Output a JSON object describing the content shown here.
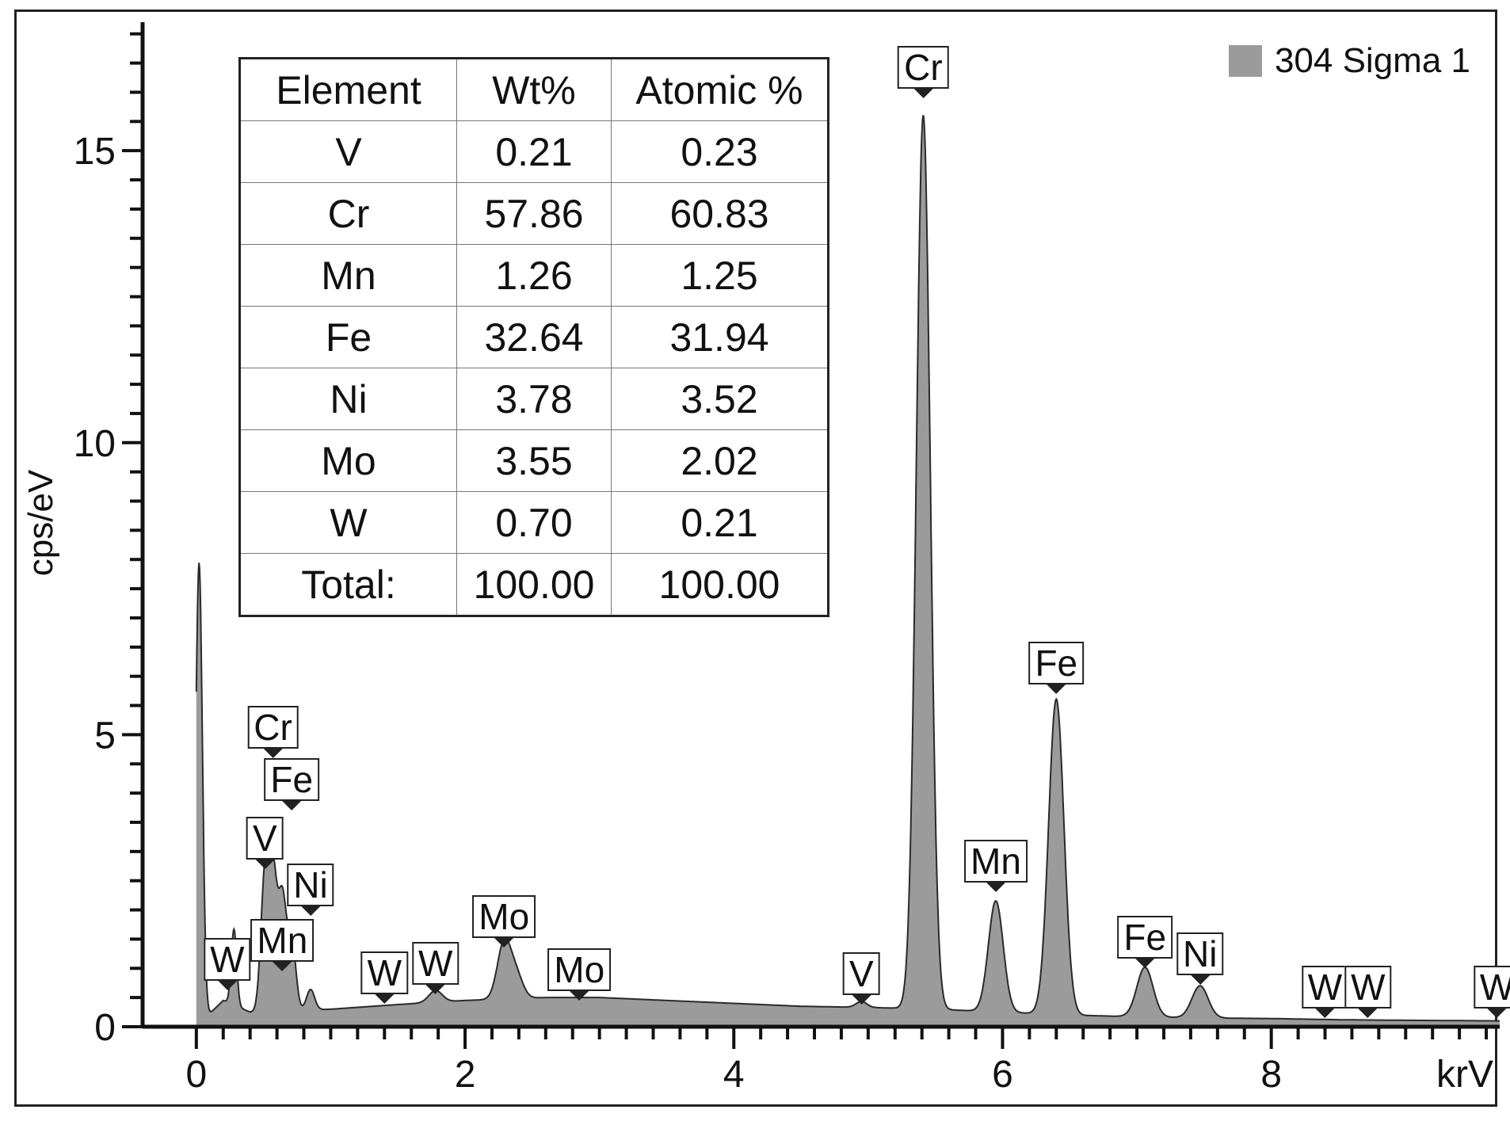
{
  "chart_data": {
    "type": "area",
    "title": "",
    "xlabel": "krV",
    "ylabel": "cps/eV",
    "xlim": [
      -0.4,
      9.7
    ],
    "ylim": [
      0,
      17.2
    ],
    "x_ticks": [
      0,
      2,
      4,
      6,
      8
    ],
    "y_ticks": [
      0,
      5,
      10,
      15
    ],
    "legend_position": "top-right",
    "series": [
      {
        "name": "304 Sigma 1",
        "color": "#9b9b9b",
        "baseline": [
          [
            0.0,
            0.0
          ],
          [
            0.2,
            0.45
          ],
          [
            0.4,
            0.25
          ],
          [
            1.0,
            0.3
          ],
          [
            1.5,
            0.38
          ],
          [
            2.0,
            0.45
          ],
          [
            2.6,
            0.5
          ],
          [
            3.0,
            0.5
          ],
          [
            3.5,
            0.45
          ],
          [
            4.0,
            0.4
          ],
          [
            4.5,
            0.35
          ],
          [
            5.0,
            0.33
          ],
          [
            5.5,
            0.3
          ],
          [
            6.0,
            0.25
          ],
          [
            6.5,
            0.2
          ],
          [
            7.0,
            0.17
          ],
          [
            7.5,
            0.15
          ],
          [
            8.0,
            0.14
          ],
          [
            8.5,
            0.12
          ],
          [
            9.0,
            0.11
          ],
          [
            9.7,
            0.1
          ]
        ],
        "peaks": [
          {
            "x": 0.02,
            "y": 7.9,
            "width": 0.025
          },
          {
            "x": 0.28,
            "y": 1.3,
            "width": 0.02
          },
          {
            "x": 0.51,
            "y": 2.3,
            "width": 0.03
          },
          {
            "x": 0.57,
            "y": 2.3,
            "width": 0.03
          },
          {
            "x": 0.64,
            "y": 1.9,
            "width": 0.03
          },
          {
            "x": 0.71,
            "y": 1.2,
            "width": 0.03
          },
          {
            "x": 0.85,
            "y": 0.35,
            "width": 0.03
          },
          {
            "x": 1.78,
            "y": 0.2,
            "width": 0.05
          },
          {
            "x": 2.29,
            "y": 0.95,
            "width": 0.05
          },
          {
            "x": 2.38,
            "y": 0.4,
            "width": 0.05
          },
          {
            "x": 4.95,
            "y": 0.1,
            "width": 0.04
          },
          {
            "x": 5.41,
            "y": 15.3,
            "width": 0.052
          },
          {
            "x": 5.95,
            "y": 1.9,
            "width": 0.055
          },
          {
            "x": 6.4,
            "y": 5.4,
            "width": 0.057
          },
          {
            "x": 7.06,
            "y": 0.85,
            "width": 0.06
          },
          {
            "x": 7.47,
            "y": 0.55,
            "width": 0.06
          }
        ]
      }
    ],
    "peak_labels": [
      {
        "label": "W",
        "x": 0.23,
        "y": 0.62
      },
      {
        "label": "Cr",
        "x": 0.57,
        "y": 4.6
      },
      {
        "label": "Fe",
        "x": 0.71,
        "y": 3.7
      },
      {
        "label": "V",
        "x": 0.51,
        "y": 2.7
      },
      {
        "label": "Ni",
        "x": 0.85,
        "y": 1.9
      },
      {
        "label": "Mn",
        "x": 0.64,
        "y": 0.95
      },
      {
        "label": "W",
        "x": 1.4,
        "y": 0.4
      },
      {
        "label": "W",
        "x": 1.78,
        "y": 0.55
      },
      {
        "label": "Mo",
        "x": 2.29,
        "y": 1.35
      },
      {
        "label": "Mo",
        "x": 2.85,
        "y": 0.45
      },
      {
        "label": "V",
        "x": 4.95,
        "y": 0.38
      },
      {
        "label": "Cr",
        "x": 5.41,
        "y": 15.9
      },
      {
        "label": "Mn",
        "x": 5.95,
        "y": 2.3
      },
      {
        "label": "Fe",
        "x": 6.4,
        "y": 5.7
      },
      {
        "label": "Fe",
        "x": 7.06,
        "y": 1.0
      },
      {
        "label": "Ni",
        "x": 7.47,
        "y": 0.72
      },
      {
        "label": "W",
        "x": 8.4,
        "y": 0.15
      },
      {
        "label": "W",
        "x": 8.72,
        "y": 0.15
      },
      {
        "label": "W",
        "x": 9.68,
        "y": 0.15
      }
    ]
  },
  "table": {
    "headers": [
      "Element",
      "Wt%",
      "Atomic %"
    ],
    "rows": [
      [
        "V",
        "0.21",
        "0.23"
      ],
      [
        "Cr",
        "57.86",
        "60.83"
      ],
      [
        "Mn",
        "1.26",
        "1.25"
      ],
      [
        "Fe",
        "32.64",
        "31.94"
      ],
      [
        "Ni",
        "3.78",
        "3.52"
      ],
      [
        "Mo",
        "3.55",
        "2.02"
      ],
      [
        "W",
        "0.70",
        "0.21"
      ],
      [
        "Total:",
        "100.00",
        "100.00"
      ]
    ]
  },
  "legend": {
    "label": "304 Sigma 1",
    "color": "#9b9b9b"
  }
}
